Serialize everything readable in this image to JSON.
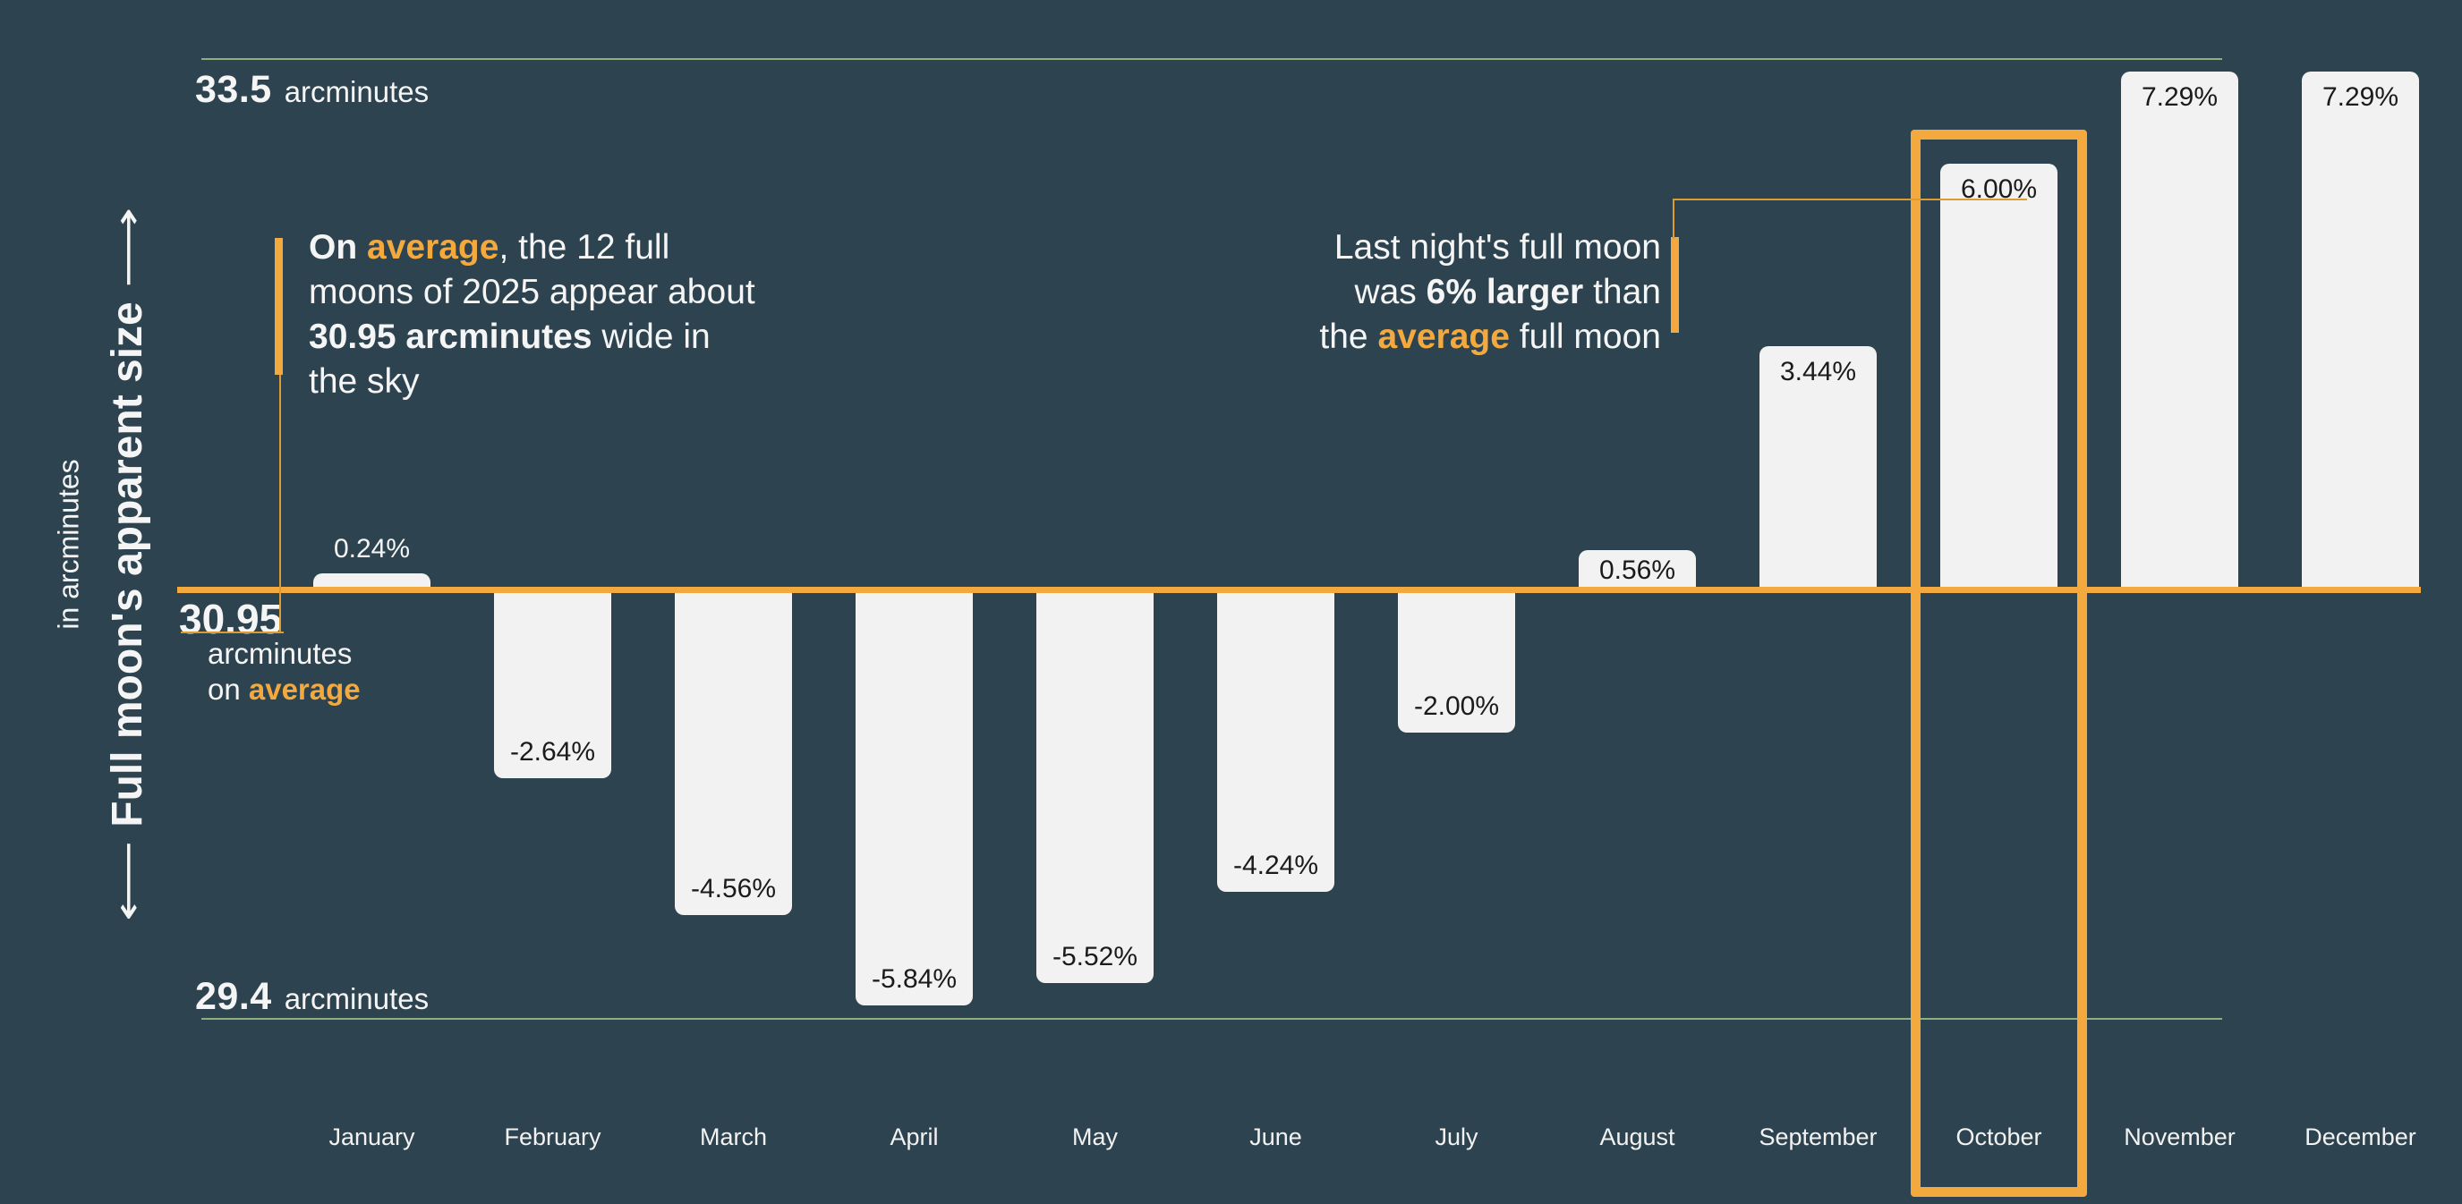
{
  "colors": {
    "background": "#2d4350",
    "accent_orange": "#f3a93e",
    "connector_orange": "#dc9c32",
    "bar_fill": "#f2f2f2",
    "bar_label_dark": "#1b1b1b",
    "text_white": "#f5f5f5",
    "reference_green": "#9cc487"
  },
  "y_axis": {
    "title": "Full moon's apparent size",
    "unit_label": "in arcminutes",
    "arrow_up": "⟶",
    "arrow_down": "⟵"
  },
  "reference_lines": {
    "top": {
      "value": "33.5",
      "unit": "arcminutes"
    },
    "average": {
      "value": "30.95",
      "line2": "arcminutes",
      "line3_prefix": "on ",
      "line3_highlight": "average"
    },
    "bottom": {
      "value": "29.4",
      "unit": "arcminutes"
    }
  },
  "annotation_left": {
    "lines": [
      [
        {
          "t": "On ",
          "bold": true
        },
        {
          "t": "average",
          "bold": true,
          "accent": true
        },
        {
          "t": ", the 12 full"
        }
      ],
      [
        {
          "t": "moons of 2025 appear about"
        }
      ],
      [
        {
          "t": "30.95 arcminutes",
          "bold": true
        },
        {
          "t": " wide in"
        }
      ],
      [
        {
          "t": "the sky"
        }
      ]
    ]
  },
  "annotation_right": {
    "lines": [
      [
        {
          "t": "Last night's full moon"
        }
      ],
      [
        {
          "t": "was "
        },
        {
          "t": "6% larger",
          "bold": true
        },
        {
          "t": " than"
        }
      ],
      [
        {
          "t": "the "
        },
        {
          "t": "average",
          "bold": true,
          "accent": true
        },
        {
          "t": " full moon"
        }
      ]
    ]
  },
  "chart_data": {
    "type": "bar",
    "categories": [
      "January",
      "February",
      "March",
      "April",
      "May",
      "June",
      "July",
      "August",
      "September",
      "October",
      "November",
      "December"
    ],
    "values": [
      0.24,
      -2.64,
      -4.56,
      -5.84,
      -5.52,
      -4.24,
      -2.0,
      0.56,
      3.44,
      6.0,
      7.29,
      7.29
    ],
    "bar_labels": [
      "0.24%",
      "-2.64%",
      "-4.56%",
      "-5.84%",
      "-5.52%",
      "-4.24%",
      "-2.00%",
      "0.56%",
      "3.44%",
      "6.00%",
      "7.29%",
      "7.29%"
    ],
    "values_are": "percent difference from the 2025 average full-moon apparent size",
    "baseline": {
      "value": 30.95,
      "unit": "arcminutes"
    },
    "axis_range_arcminutes": [
      29.4,
      33.5
    ],
    "highlight_category": "October",
    "grid": "off",
    "legend": "none"
  }
}
